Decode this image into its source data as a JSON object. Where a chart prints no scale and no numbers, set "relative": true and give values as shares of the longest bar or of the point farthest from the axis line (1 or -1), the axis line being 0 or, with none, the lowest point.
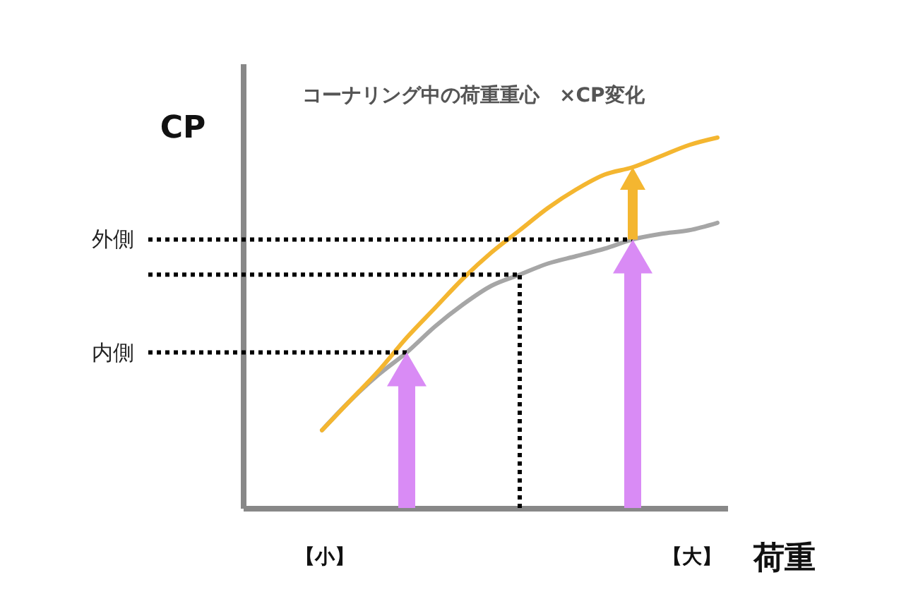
{
  "chart_data": {
    "type": "line",
    "title": "コーナリング中の荷重重心　×CP変化",
    "xlabel": "荷重",
    "ylabel": "CP",
    "relative": true,
    "legend": false,
    "grid": false,
    "line_style": "solid",
    "marker": "none",
    "categories": [
      null,
      null,
      null,
      null,
      null,
      null,
      null,
      null,
      null,
      null,
      null,
      null,
      null,
      null,
      null
    ],
    "series": [
      {
        "color": "#a6a6a6",
        "values": [
          0.21,
          0.29,
          0.36,
          0.42,
          0.49,
          0.55,
          0.6,
          0.63,
          0.66,
          0.68,
          0.7,
          0.725,
          0.74,
          0.75,
          0.77
        ]
      },
      {
        "color": "#f4b630",
        "values": [
          0.21,
          0.29,
          0.37,
          0.46,
          0.54,
          0.62,
          0.69,
          0.75,
          0.81,
          0.86,
          0.9,
          0.92,
          0.95,
          0.98,
          1
        ]
      }
    ],
    "ref_lines": [
      {
        "axis": "y",
        "value": 0.725,
        "label": "外側",
        "line_style": "dotted",
        "color": "#000000"
      },
      {
        "axis": "y",
        "value": 0.63,
        "label": null,
        "line_style": "dotted",
        "color": "#000000"
      },
      {
        "axis": "y",
        "value": 0.42,
        "label": "内側",
        "line_style": "dotted",
        "color": "#000000"
      }
    ],
    "annotations": [
      "【小】",
      "【大】"
    ]
  }
}
